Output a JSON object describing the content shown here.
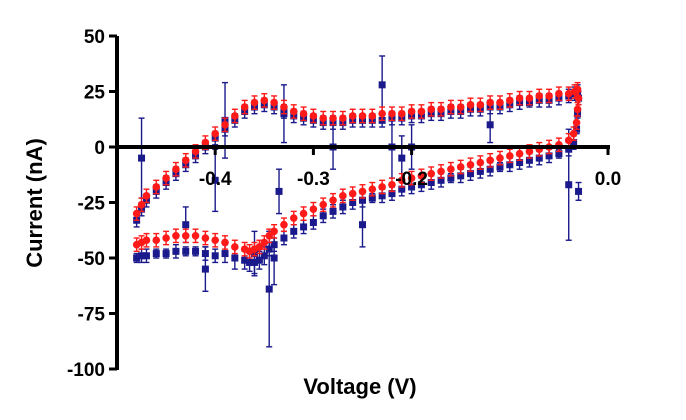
{
  "chart_data": {
    "type": "scatter",
    "title": "",
    "xlabel": "Voltage (V)",
    "ylabel": "Current (nA)",
    "xlim": [
      -0.5,
      0.0
    ],
    "ylim": [
      -100,
      50
    ],
    "x_ticks": [
      -0.4,
      -0.3,
      -0.2,
      0.0
    ],
    "x_tick_labels": [
      "-0.4",
      "-0.3",
      "-0.2",
      "0.0"
    ],
    "y_ticks": [
      50,
      25,
      0,
      -25,
      -50,
      -75,
      -100
    ],
    "y_tick_labels": [
      "50",
      "25",
      "0",
      "-25",
      "-50",
      "-75",
      "-100"
    ],
    "grid": false,
    "legend": "none",
    "series": [
      {
        "color": "#1a1a8c",
        "marker": "square",
        "x": [
          -0.48,
          -0.475,
          -0.47,
          -0.46,
          -0.45,
          -0.44,
          -0.43,
          -0.42,
          -0.41,
          -0.4,
          -0.39,
          -0.38,
          -0.37,
          -0.365,
          -0.36,
          -0.355,
          -0.35,
          -0.345,
          -0.34,
          -0.33,
          -0.32,
          -0.31,
          -0.3,
          -0.29,
          -0.28,
          -0.27,
          -0.26,
          -0.25,
          -0.24,
          -0.23,
          -0.22,
          -0.21,
          -0.2,
          -0.19,
          -0.18,
          -0.17,
          -0.16,
          -0.15,
          -0.14,
          -0.13,
          -0.12,
          -0.11,
          -0.1,
          -0.09,
          -0.08,
          -0.07,
          -0.06,
          -0.05,
          -0.04,
          -0.035,
          -0.032,
          -0.031,
          -0.03,
          -0.031,
          -0.034,
          -0.04,
          -0.05,
          -0.06,
          -0.07,
          -0.08,
          -0.09,
          -0.1,
          -0.11,
          -0.12,
          -0.13,
          -0.14,
          -0.15,
          -0.16,
          -0.17,
          -0.18,
          -0.19,
          -0.2,
          -0.21,
          -0.22,
          -0.23,
          -0.24,
          -0.25,
          -0.26,
          -0.27,
          -0.28,
          -0.29,
          -0.3,
          -0.31,
          -0.32,
          -0.33,
          -0.34,
          -0.35,
          -0.36,
          -0.37,
          -0.38,
          -0.39,
          -0.4,
          -0.41,
          -0.42,
          -0.43,
          -0.44,
          -0.45,
          -0.46,
          -0.47,
          -0.475,
          -0.48
        ],
        "y": [
          -50,
          -49,
          -49,
          -48,
          -48,
          -47,
          -47,
          -47,
          -48,
          -49,
          -48,
          -50,
          -51,
          -52,
          -52,
          -51,
          -49,
          -46,
          -44,
          -41,
          -38,
          -36,
          -34,
          -31,
          -29,
          -27,
          -25,
          -24,
          -23,
          -22,
          -21,
          -19,
          -18,
          -17,
          -16,
          -15,
          -14,
          -13,
          -12,
          -11,
          -10,
          -9,
          -8,
          -7,
          -6,
          -5,
          -4,
          -3,
          -1,
          2,
          8,
          15,
          22,
          25,
          24,
          23,
          22,
          21,
          21,
          20,
          20,
          19,
          18,
          18,
          17,
          17,
          16,
          16,
          15,
          15,
          14,
          14,
          13,
          13,
          12,
          12,
          12,
          12,
          11,
          11,
          11,
          12,
          13,
          14,
          16,
          18,
          19,
          18,
          16,
          12,
          8,
          4,
          0,
          -4,
          -8,
          -12,
          -16,
          -20,
          -24,
          -28,
          -33
        ],
        "yerr": [
          2,
          3,
          3,
          2,
          2,
          3,
          2,
          2,
          3,
          3,
          4,
          5,
          4,
          4,
          5,
          4,
          4,
          3,
          3,
          3,
          3,
          3,
          3,
          3,
          3,
          3,
          3,
          3,
          2,
          3,
          3,
          3,
          3,
          3,
          3,
          3,
          2,
          3,
          3,
          3,
          3,
          2,
          3,
          3,
          3,
          3,
          3,
          2,
          3,
          3,
          2,
          2,
          3,
          3,
          3,
          3,
          3,
          3,
          3,
          2,
          3,
          3,
          3,
          3,
          3,
          3,
          3,
          3,
          3,
          3,
          3,
          3,
          3,
          3,
          3,
          3,
          3,
          3,
          3,
          3,
          3,
          3,
          3,
          3,
          3,
          3,
          3,
          3,
          3,
          3,
          3,
          3,
          3,
          3,
          3,
          3,
          3,
          3,
          3,
          3,
          3
        ],
        "outliers": {
          "x": [
            -0.475,
            -0.43,
            -0.41,
            -0.4,
            -0.39,
            -0.36,
            -0.345,
            -0.34,
            -0.335,
            -0.33,
            -0.28,
            -0.25,
            -0.23,
            -0.22,
            -0.21,
            -0.2,
            -0.12,
            -0.04,
            -0.03
          ],
          "y": [
            -5,
            -35,
            -55,
            -15,
            12,
            -48,
            -64,
            -50,
            -20,
            15,
            0,
            -35,
            28,
            0,
            -5,
            0,
            10,
            -17,
            -20
          ],
          "yerr": [
            18,
            8,
            10,
            14,
            17,
            10,
            26,
            12,
            10,
            13,
            10,
            10,
            13,
            14,
            10,
            10,
            8,
            25,
            4
          ]
        }
      },
      {
        "color": "#ff1a1a",
        "marker": "circle",
        "x": [
          -0.48,
          -0.475,
          -0.47,
          -0.46,
          -0.45,
          -0.44,
          -0.43,
          -0.42,
          -0.41,
          -0.4,
          -0.39,
          -0.38,
          -0.37,
          -0.365,
          -0.36,
          -0.355,
          -0.35,
          -0.345,
          -0.34,
          -0.33,
          -0.32,
          -0.31,
          -0.3,
          -0.29,
          -0.28,
          -0.27,
          -0.26,
          -0.25,
          -0.24,
          -0.23,
          -0.22,
          -0.21,
          -0.2,
          -0.19,
          -0.18,
          -0.17,
          -0.16,
          -0.15,
          -0.14,
          -0.13,
          -0.12,
          -0.11,
          -0.1,
          -0.09,
          -0.08,
          -0.07,
          -0.06,
          -0.05,
          -0.04,
          -0.035,
          -0.032,
          -0.031,
          -0.03,
          -0.031,
          -0.034,
          -0.04,
          -0.05,
          -0.06,
          -0.07,
          -0.08,
          -0.09,
          -0.1,
          -0.11,
          -0.12,
          -0.13,
          -0.14,
          -0.15,
          -0.16,
          -0.17,
          -0.18,
          -0.19,
          -0.2,
          -0.21,
          -0.22,
          -0.23,
          -0.24,
          -0.25,
          -0.26,
          -0.27,
          -0.28,
          -0.29,
          -0.3,
          -0.31,
          -0.32,
          -0.33,
          -0.34,
          -0.35,
          -0.36,
          -0.37,
          -0.38,
          -0.39,
          -0.4,
          -0.41,
          -0.42,
          -0.43,
          -0.44,
          -0.45,
          -0.46,
          -0.47,
          -0.475,
          -0.48
        ],
        "y": [
          -44,
          -43,
          -42,
          -42,
          -41,
          -40,
          -40,
          -40,
          -41,
          -42,
          -43,
          -45,
          -46,
          -47,
          -46,
          -45,
          -43,
          -40,
          -38,
          -35,
          -32,
          -30,
          -28,
          -26,
          -24,
          -22,
          -21,
          -20,
          -19,
          -18,
          -17,
          -15,
          -14,
          -13,
          -12,
          -11,
          -10,
          -9,
          -8,
          -7,
          -6,
          -5,
          -4,
          -3,
          -2,
          -1,
          0,
          1,
          3,
          6,
          11,
          17,
          22,
          26,
          25,
          24,
          24,
          23,
          23,
          22,
          22,
          21,
          20,
          20,
          19,
          19,
          18,
          18,
          17,
          17,
          16,
          16,
          15,
          15,
          15,
          14,
          14,
          14,
          13,
          13,
          13,
          14,
          15,
          16,
          18,
          20,
          21,
          20,
          18,
          14,
          10,
          6,
          2,
          -2,
          -6,
          -10,
          -14,
          -18,
          -22,
          -26,
          -30
        ],
        "yerr": [
          3,
          3,
          3,
          3,
          3,
          3,
          3,
          3,
          3,
          3,
          3,
          3,
          3,
          3,
          3,
          3,
          3,
          3,
          3,
          3,
          3,
          3,
          3,
          3,
          3,
          3,
          3,
          3,
          3,
          3,
          3,
          3,
          3,
          3,
          3,
          3,
          3,
          3,
          3,
          3,
          3,
          3,
          3,
          3,
          3,
          3,
          3,
          3,
          3,
          3,
          3,
          3,
          3,
          3,
          3,
          3,
          3,
          3,
          3,
          3,
          3,
          3,
          3,
          3,
          3,
          3,
          3,
          3,
          3,
          3,
          3,
          3,
          3,
          3,
          3,
          3,
          3,
          3,
          3,
          3,
          3,
          3,
          3,
          3,
          3,
          3,
          3,
          3,
          3,
          3,
          3,
          3,
          3,
          3,
          3,
          3,
          3,
          3,
          3,
          3,
          3
        ]
      }
    ]
  }
}
